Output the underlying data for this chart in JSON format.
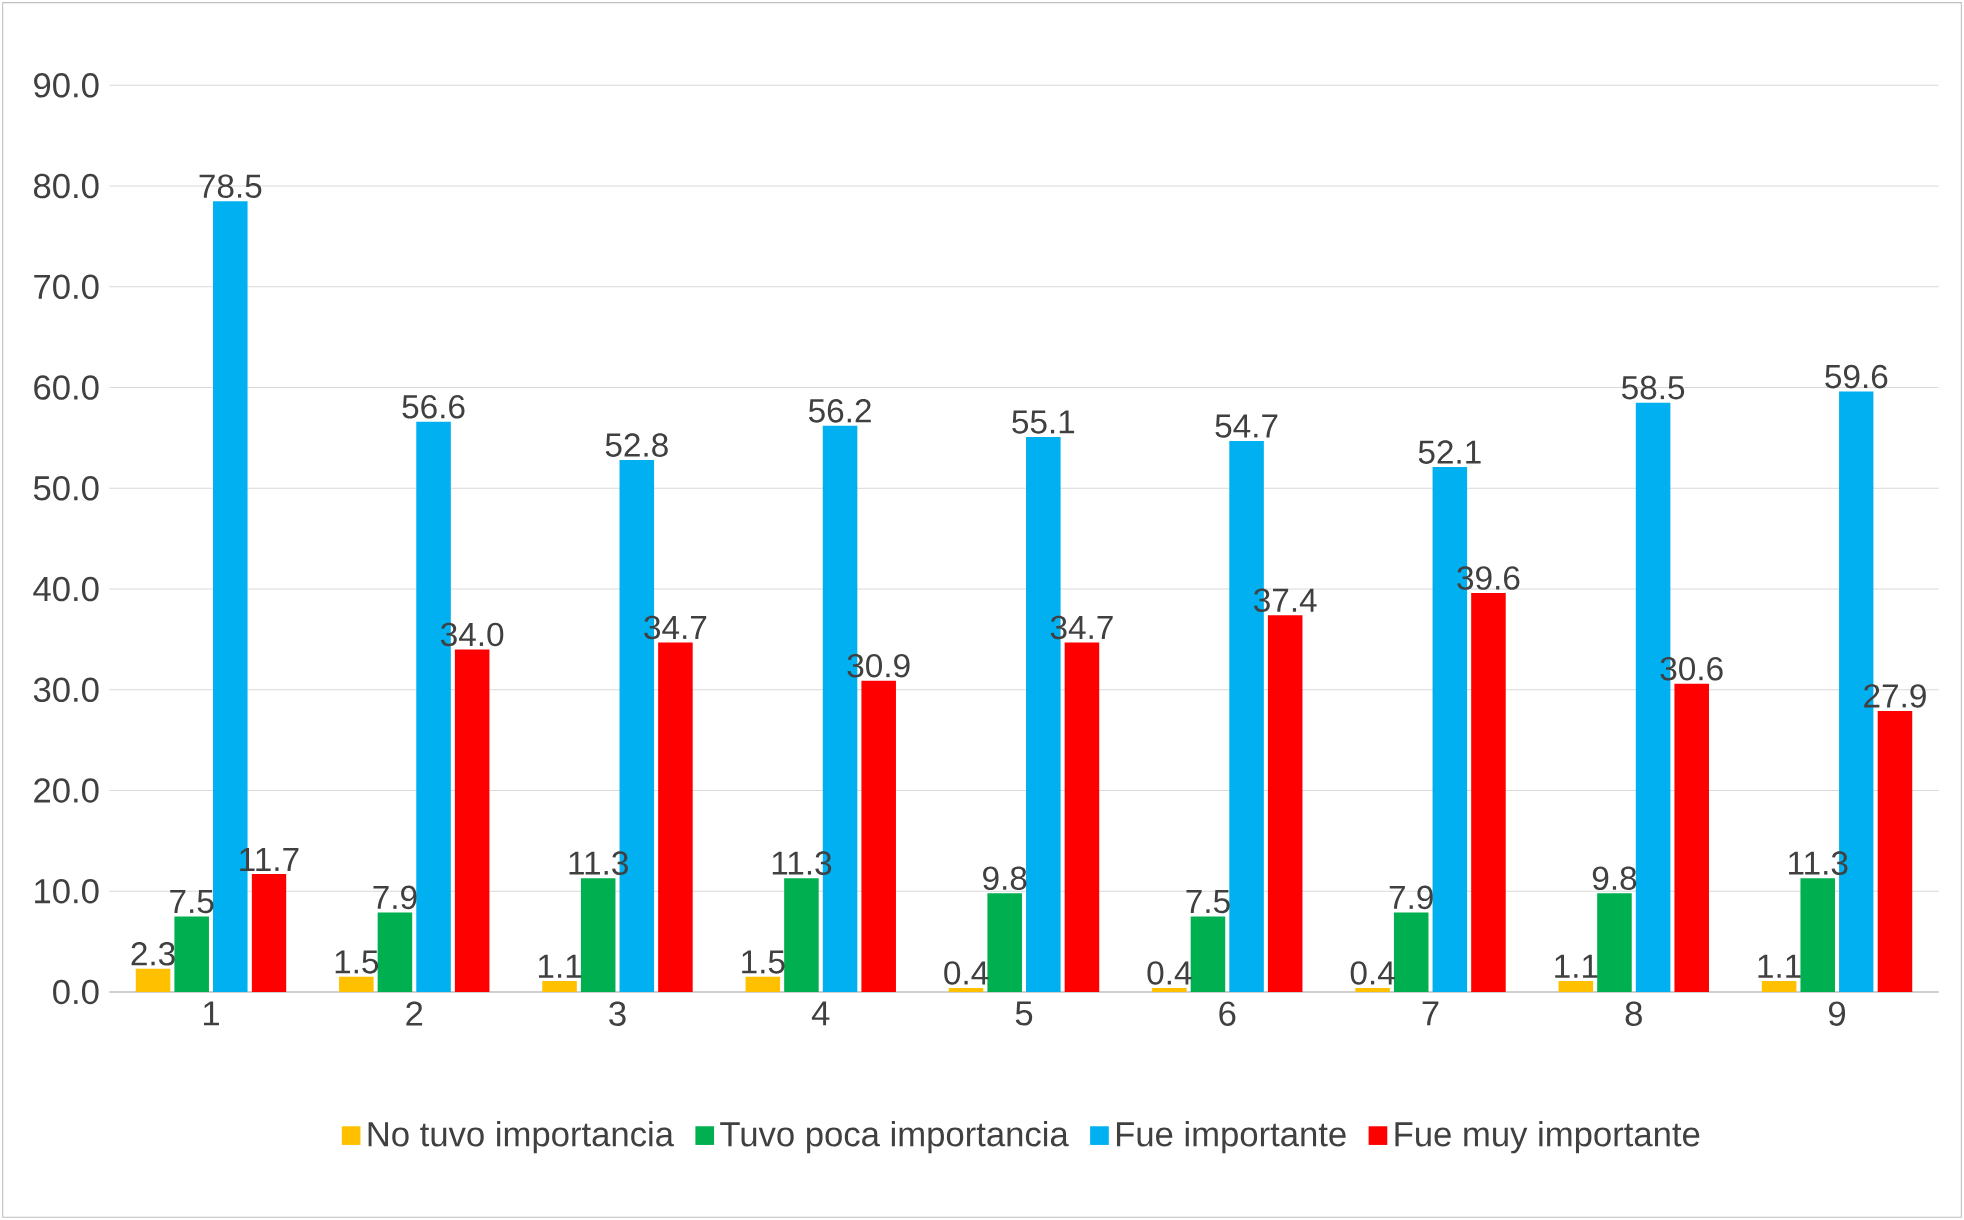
{
  "chart_data": {
    "type": "bar",
    "categories": [
      "1",
      "2",
      "3",
      "4",
      "5",
      "6",
      "7",
      "8",
      "9"
    ],
    "series": [
      {
        "name": "No tuvo importancia",
        "color": "#ffc000",
        "values": [
          2.3,
          1.5,
          1.1,
          1.5,
          0.4,
          0.4,
          0.4,
          1.1,
          1.1
        ],
        "value_labels": [
          "2.3",
          "1.5",
          "1.1",
          "1.5",
          "0.4",
          "0.4",
          "0.4",
          "1.1",
          "1.1"
        ]
      },
      {
        "name": "Tuvo poca importancia",
        "color": "#00b050",
        "values": [
          7.5,
          7.9,
          11.3,
          11.3,
          9.8,
          7.5,
          7.9,
          9.8,
          11.3
        ],
        "value_labels": [
          "7.5",
          "7.9",
          "11.3",
          "11.3",
          "9.8",
          "7.5",
          "7.9",
          "9.8",
          "11.3"
        ]
      },
      {
        "name": "Fue importante",
        "color": "#00b0f0",
        "values": [
          78.5,
          56.6,
          52.8,
          56.2,
          55.1,
          54.7,
          52.1,
          58.5,
          59.6
        ],
        "value_labels": [
          "78.5",
          "56.6",
          "52.8",
          "56.2",
          "55.1",
          "54.7",
          "52.1",
          "58.5",
          "59.6"
        ]
      },
      {
        "name": "Fue muy importante",
        "color": "#ff0000",
        "values": [
          11.7,
          34.0,
          34.7,
          30.9,
          34.7,
          37.4,
          39.6,
          30.6,
          27.9
        ],
        "value_labels": [
          "11.7",
          "34.0",
          "34.7",
          "30.9",
          "34.7",
          "37.4",
          "39.6",
          "30.6",
          "27.9"
        ]
      }
    ],
    "ylim": [
      0,
      90
    ],
    "yticks": [
      {
        "value": 0,
        "label": "0.0"
      },
      {
        "value": 10,
        "label": "10.0"
      },
      {
        "value": 20,
        "label": "20.0"
      },
      {
        "value": 30,
        "label": "30.0"
      },
      {
        "value": 40,
        "label": "40.0"
      },
      {
        "value": 50,
        "label": "50.0"
      },
      {
        "value": 60,
        "label": "60.0"
      },
      {
        "value": 70,
        "label": "70.0"
      },
      {
        "value": 80,
        "label": "80.0"
      },
      {
        "value": 90,
        "label": "90.0"
      }
    ],
    "grid": "y",
    "legend": "bottom"
  }
}
